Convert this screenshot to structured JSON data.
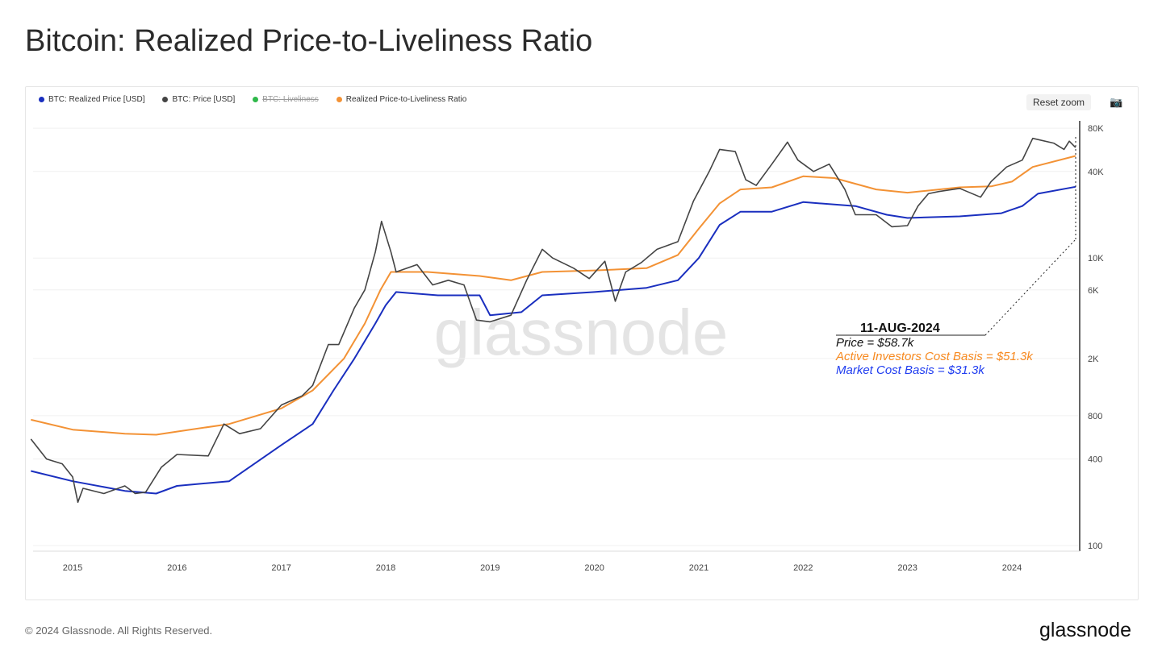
{
  "title": "Bitcoin: Realized Price-to-Liveliness Ratio",
  "legend": [
    {
      "name": "BTC: Realized Price [USD]",
      "color": "#1a2fbf",
      "hidden": false
    },
    {
      "name": "BTC: Price [USD]",
      "color": "#444444",
      "hidden": false
    },
    {
      "name": "BTC: Liveliness",
      "color": "#2fb84a",
      "hidden": true
    },
    {
      "name": "Realized Price-to-Liveliness Ratio",
      "color": "#f39235",
      "hidden": false
    }
  ],
  "controls": {
    "reset_zoom": "Reset zoom",
    "camera_icon": "camera-icon"
  },
  "watermark": "glassnode",
  "annotation": {
    "date": "11-AUG-2024",
    "price": "Price = $58.7k",
    "active": "Active Investors Cost Basis = $51.3k",
    "market": "Market Cost Basis = $31.3k",
    "active_color": "#f7891f",
    "market_color": "#1f3cf0"
  },
  "footer": {
    "copyright": "© 2024 Glassnode. All Rights Reserved.",
    "brand": "glassnode"
  },
  "chart_data": {
    "type": "line",
    "y_scale": "log",
    "ylim": [
      100,
      100000
    ],
    "xlim": [
      2014.6,
      2024.65
    ],
    "grid": true,
    "legend_position": "top-left",
    "x_ticks": [
      "2015",
      "2016",
      "2017",
      "2018",
      "2019",
      "2020",
      "2021",
      "2022",
      "2023",
      "2024"
    ],
    "y_ticks": [
      {
        "v": 100,
        "label": "100"
      },
      {
        "v": 400,
        "label": "400"
      },
      {
        "v": 800,
        "label": "800"
      },
      {
        "v": 2000,
        "label": "2K"
      },
      {
        "v": 6000,
        "label": "6K"
      },
      {
        "v": 10000,
        "label": "10K"
      },
      {
        "v": 40000,
        "label": "40K"
      },
      {
        "v": 80000,
        "label": "80K"
      }
    ],
    "series": [
      {
        "name": "Realized Price-to-Liveliness Ratio",
        "color": "#f39235",
        "points": [
          [
            2014.6,
            750
          ],
          [
            2015.0,
            640
          ],
          [
            2015.5,
            600
          ],
          [
            2015.8,
            590
          ],
          [
            2016.0,
            620
          ],
          [
            2016.5,
            700
          ],
          [
            2017.0,
            900
          ],
          [
            2017.3,
            1200
          ],
          [
            2017.6,
            2000
          ],
          [
            2017.8,
            3500
          ],
          [
            2017.95,
            6000
          ],
          [
            2018.05,
            8000
          ],
          [
            2018.4,
            8000
          ],
          [
            2018.9,
            7500
          ],
          [
            2019.2,
            7000
          ],
          [
            2019.5,
            8000
          ],
          [
            2020.0,
            8200
          ],
          [
            2020.5,
            8500
          ],
          [
            2020.8,
            10500
          ],
          [
            2021.0,
            16000
          ],
          [
            2021.2,
            24000
          ],
          [
            2021.4,
            30000
          ],
          [
            2021.7,
            31000
          ],
          [
            2022.0,
            37000
          ],
          [
            2022.3,
            36000
          ],
          [
            2022.7,
            30000
          ],
          [
            2023.0,
            28500
          ],
          [
            2023.5,
            31000
          ],
          [
            2023.8,
            31500
          ],
          [
            2024.0,
            34000
          ],
          [
            2024.2,
            43000
          ],
          [
            2024.61,
            51300
          ]
        ]
      },
      {
        "name": "BTC: Realized Price [USD]",
        "color": "#1a2fbf",
        "points": [
          [
            2014.6,
            330
          ],
          [
            2015.0,
            280
          ],
          [
            2015.5,
            240
          ],
          [
            2015.8,
            230
          ],
          [
            2016.0,
            260
          ],
          [
            2016.5,
            280
          ],
          [
            2017.0,
            500
          ],
          [
            2017.3,
            700
          ],
          [
            2017.5,
            1200
          ],
          [
            2017.7,
            2000
          ],
          [
            2017.9,
            3500
          ],
          [
            2018.0,
            4700
          ],
          [
            2018.1,
            5800
          ],
          [
            2018.5,
            5500
          ],
          [
            2018.9,
            5500
          ],
          [
            2019.0,
            4000
          ],
          [
            2019.3,
            4200
          ],
          [
            2019.5,
            5500
          ],
          [
            2020.0,
            5800
          ],
          [
            2020.5,
            6200
          ],
          [
            2020.8,
            7000
          ],
          [
            2021.0,
            10000
          ],
          [
            2021.2,
            17000
          ],
          [
            2021.4,
            21000
          ],
          [
            2021.7,
            21000
          ],
          [
            2022.0,
            24500
          ],
          [
            2022.5,
            23000
          ],
          [
            2022.8,
            20000
          ],
          [
            2023.0,
            19000
          ],
          [
            2023.5,
            19500
          ],
          [
            2023.9,
            20500
          ],
          [
            2024.1,
            23000
          ],
          [
            2024.25,
            28000
          ],
          [
            2024.61,
            31300
          ]
        ]
      },
      {
        "name": "BTC: Price [USD]",
        "color": "#444444",
        "points": [
          [
            2014.6,
            550
          ],
          [
            2014.75,
            400
          ],
          [
            2014.9,
            370
          ],
          [
            2015.0,
            300
          ],
          [
            2015.05,
            200
          ],
          [
            2015.1,
            250
          ],
          [
            2015.3,
            230
          ],
          [
            2015.5,
            260
          ],
          [
            2015.6,
            230
          ],
          [
            2015.7,
            235
          ],
          [
            2015.85,
            350
          ],
          [
            2016.0,
            430
          ],
          [
            2016.3,
            420
          ],
          [
            2016.45,
            700
          ],
          [
            2016.6,
            600
          ],
          [
            2016.8,
            650
          ],
          [
            2017.0,
            950
          ],
          [
            2017.2,
            1100
          ],
          [
            2017.3,
            1300
          ],
          [
            2017.45,
            2500
          ],
          [
            2017.55,
            2500
          ],
          [
            2017.7,
            4500
          ],
          [
            2017.8,
            6000
          ],
          [
            2017.9,
            11000
          ],
          [
            2017.96,
            18000
          ],
          [
            2018.05,
            11000
          ],
          [
            2018.1,
            8000
          ],
          [
            2018.3,
            9000
          ],
          [
            2018.45,
            6500
          ],
          [
            2018.6,
            7000
          ],
          [
            2018.75,
            6500
          ],
          [
            2018.87,
            3700
          ],
          [
            2019.0,
            3600
          ],
          [
            2019.2,
            4000
          ],
          [
            2019.35,
            7000
          ],
          [
            2019.5,
            11500
          ],
          [
            2019.6,
            10000
          ],
          [
            2019.8,
            8500
          ],
          [
            2019.95,
            7200
          ],
          [
            2020.1,
            9500
          ],
          [
            2020.2,
            5000
          ],
          [
            2020.3,
            8000
          ],
          [
            2020.45,
            9300
          ],
          [
            2020.6,
            11500
          ],
          [
            2020.8,
            13000
          ],
          [
            2020.95,
            25000
          ],
          [
            2021.1,
            40000
          ],
          [
            2021.2,
            57000
          ],
          [
            2021.35,
            55000
          ],
          [
            2021.45,
            35000
          ],
          [
            2021.55,
            32000
          ],
          [
            2021.7,
            45000
          ],
          [
            2021.85,
            64000
          ],
          [
            2021.95,
            48000
          ],
          [
            2022.1,
            40000
          ],
          [
            2022.25,
            45000
          ],
          [
            2022.4,
            30000
          ],
          [
            2022.5,
            20000
          ],
          [
            2022.7,
            20000
          ],
          [
            2022.85,
            16500
          ],
          [
            2023.0,
            16800
          ],
          [
            2023.1,
            23000
          ],
          [
            2023.2,
            28000
          ],
          [
            2023.3,
            29000
          ],
          [
            2023.5,
            30500
          ],
          [
            2023.7,
            26500
          ],
          [
            2023.8,
            34000
          ],
          [
            2023.95,
            43000
          ],
          [
            2024.1,
            48000
          ],
          [
            2024.2,
            68000
          ],
          [
            2024.4,
            63000
          ],
          [
            2024.5,
            57000
          ],
          [
            2024.55,
            65000
          ],
          [
            2024.61,
            58700
          ]
        ]
      }
    ]
  }
}
